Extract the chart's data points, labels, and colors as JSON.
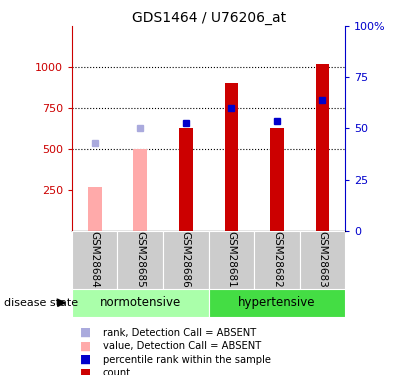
{
  "title": "GDS1464 / U76206_at",
  "samples": [
    "GSM28684",
    "GSM28685",
    "GSM28686",
    "GSM28681",
    "GSM28682",
    "GSM28683"
  ],
  "ylim_left": [
    0,
    1250
  ],
  "ylim_right": [
    0,
    100
  ],
  "yticks_left": [
    250,
    500,
    750,
    1000
  ],
  "ytick_labels_left": [
    "250",
    "500",
    "750",
    "1000"
  ],
  "ytick_labels_right": [
    "0",
    "25",
    "50",
    "75",
    "100%"
  ],
  "yticks_right": [
    0,
    25,
    50,
    75,
    100
  ],
  "bar_values": [
    null,
    null,
    625,
    900,
    625,
    1020
  ],
  "absent_bar_values": [
    265,
    500,
    null,
    null,
    null,
    null
  ],
  "rank_present_lax": [
    null,
    null,
    660,
    750,
    670,
    800
  ],
  "rank_absent_lax": [
    535,
    630,
    null,
    null,
    null,
    null
  ],
  "dotted_line_y": [
    500,
    750,
    1000
  ],
  "bar_color_present": "#cc0000",
  "bar_color_absent": "#ffaaaa",
  "rank_color_present": "#0000cc",
  "rank_color_absent": "#aaaadd",
  "bg_sample_row": "#cccccc",
  "bg_norm": "#aaffaa",
  "bg_hyper": "#44dd44",
  "group_label_norm": "normotensive",
  "group_label_hyper": "hypertensive",
  "disease_state_label": "disease state",
  "legend_items": [
    "count",
    "percentile rank within the sample",
    "value, Detection Call = ABSENT",
    "rank, Detection Call = ABSENT"
  ],
  "legend_colors": [
    "#cc0000",
    "#0000cc",
    "#ffaaaa",
    "#aaaadd"
  ]
}
